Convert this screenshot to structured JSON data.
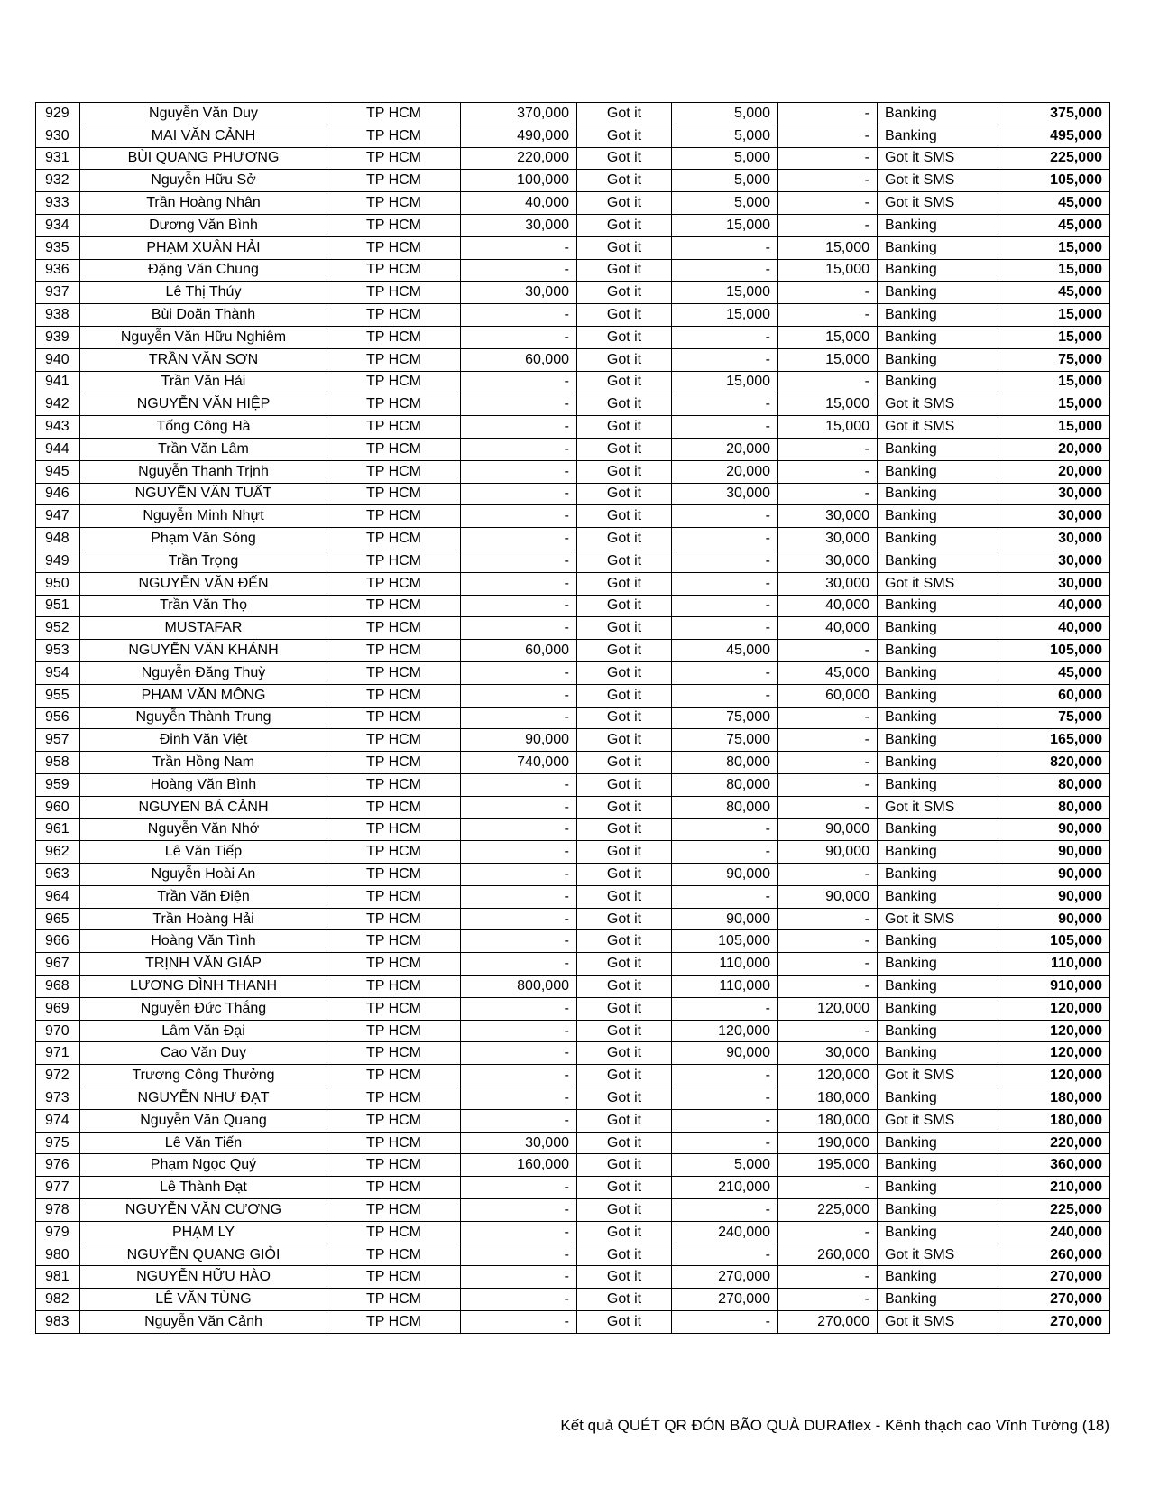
{
  "table": {
    "rows": [
      [
        "929",
        "Nguyễn Văn Duy",
        "TP HCM",
        "370,000",
        "Got it",
        "5,000",
        "-",
        "Banking",
        "375,000"
      ],
      [
        "930",
        "MAI VĂN CẢNH",
        "TP HCM",
        "490,000",
        "Got it",
        "5,000",
        "-",
        "Banking",
        "495,000"
      ],
      [
        "931",
        "BÙI QUANG PHƯƠNG",
        "TP HCM",
        "220,000",
        "Got it",
        "5,000",
        "-",
        "Got it SMS",
        "225,000"
      ],
      [
        "932",
        "Nguyễn Hữu Sở",
        "TP HCM",
        "100,000",
        "Got it",
        "5,000",
        "-",
        "Got it SMS",
        "105,000"
      ],
      [
        "933",
        "Trần Hoàng Nhân",
        "TP HCM",
        "40,000",
        "Got it",
        "5,000",
        "-",
        "Got it SMS",
        "45,000"
      ],
      [
        "934",
        "Dương Văn Bình",
        "TP HCM",
        "30,000",
        "Got it",
        "15,000",
        "-",
        "Banking",
        "45,000"
      ],
      [
        "935",
        "PHẠM XUÂN HẢI",
        "TP HCM",
        "-",
        "Got it",
        "-",
        "15,000",
        "Banking",
        "15,000"
      ],
      [
        "936",
        "Đặng Văn Chung",
        "TP HCM",
        "-",
        "Got it",
        "-",
        "15,000",
        "Banking",
        "15,000"
      ],
      [
        "937",
        "Lê Thị Thúy",
        "TP HCM",
        "30,000",
        "Got it",
        "15,000",
        "-",
        "Banking",
        "45,000"
      ],
      [
        "938",
        "Bùi Doãn Thành",
        "TP HCM",
        "-",
        "Got it",
        "15,000",
        "-",
        "Banking",
        "15,000"
      ],
      [
        "939",
        "Nguyễn Văn Hữu Nghiêm",
        "TP HCM",
        "-",
        "Got it",
        "-",
        "15,000",
        "Banking",
        "15,000"
      ],
      [
        "940",
        "TRẦN VĂN SƠN",
        "TP HCM",
        "60,000",
        "Got it",
        "-",
        "15,000",
        "Banking",
        "75,000"
      ],
      [
        "941",
        "Trần Văn Hải",
        "TP HCM",
        "-",
        "Got it",
        "15,000",
        "-",
        "Banking",
        "15,000"
      ],
      [
        "942",
        "NGUYỄN VĂN HIỆP",
        "TP HCM",
        "-",
        "Got it",
        "-",
        "15,000",
        "Got it SMS",
        "15,000"
      ],
      [
        "943",
        "Tống Công Hà",
        "TP HCM",
        "-",
        "Got it",
        "-",
        "15,000",
        "Got it SMS",
        "15,000"
      ],
      [
        "944",
        "Trần Văn Lâm",
        "TP HCM",
        "-",
        "Got it",
        "20,000",
        "-",
        "Banking",
        "20,000"
      ],
      [
        "945",
        "Nguyễn Thanh Trịnh",
        "TP HCM",
        "-",
        "Got it",
        "20,000",
        "-",
        "Banking",
        "20,000"
      ],
      [
        "946",
        "NGUYỄN VĂN TUẤT",
        "TP HCM",
        "-",
        "Got it",
        "30,000",
        "-",
        "Banking",
        "30,000"
      ],
      [
        "947",
        "Nguyễn Minh Nhựt",
        "TP HCM",
        "-",
        "Got it",
        "-",
        "30,000",
        "Banking",
        "30,000"
      ],
      [
        "948",
        "Phạm Văn Sóng",
        "TP HCM",
        "-",
        "Got it",
        "-",
        "30,000",
        "Banking",
        "30,000"
      ],
      [
        "949",
        "Trần Trọng",
        "TP HCM",
        "-",
        "Got it",
        "-",
        "30,000",
        "Banking",
        "30,000"
      ],
      [
        "950",
        "NGUYỄN VĂN ĐẾN",
        "TP HCM",
        "-",
        "Got it",
        "-",
        "30,000",
        "Got it SMS",
        "30,000"
      ],
      [
        "951",
        "Trần Văn Thọ",
        "TP HCM",
        "-",
        "Got it",
        "-",
        "40,000",
        "Banking",
        "40,000"
      ],
      [
        "952",
        "MUSTAFAR",
        "TP HCM",
        "-",
        "Got it",
        "-",
        "40,000",
        "Banking",
        "40,000"
      ],
      [
        "953",
        "NGUYỄN VĂN KHÁNH",
        "TP HCM",
        "60,000",
        "Got it",
        "45,000",
        "-",
        "Banking",
        "105,000"
      ],
      [
        "954",
        "Nguyễn Đăng Thuỳ",
        "TP HCM",
        "-",
        "Got it",
        "-",
        "45,000",
        "Banking",
        "45,000"
      ],
      [
        "955",
        "PHAM VĂN MÔNG",
        "TP HCM",
        "-",
        "Got it",
        "-",
        "60,000",
        "Banking",
        "60,000"
      ],
      [
        "956",
        "Nguyễn Thành Trung",
        "TP HCM",
        "-",
        "Got it",
        "75,000",
        "-",
        "Banking",
        "75,000"
      ],
      [
        "957",
        "Đinh Văn Việt",
        "TP HCM",
        "90,000",
        "Got it",
        "75,000",
        "-",
        "Banking",
        "165,000"
      ],
      [
        "958",
        "Trần Hồng Nam",
        "TP HCM",
        "740,000",
        "Got it",
        "80,000",
        "-",
        "Banking",
        "820,000"
      ],
      [
        "959",
        "Hoàng Văn Bình",
        "TP HCM",
        "-",
        "Got it",
        "80,000",
        "-",
        "Banking",
        "80,000"
      ],
      [
        "960",
        "NGUYEN BÁ CẢNH",
        "TP HCM",
        "-",
        "Got it",
        "80,000",
        "-",
        "Got it SMS",
        "80,000"
      ],
      [
        "961",
        "Nguyễn Văn Nhớ",
        "TP HCM",
        "-",
        "Got it",
        "-",
        "90,000",
        "Banking",
        "90,000"
      ],
      [
        "962",
        "Lê Văn Tiếp",
        "TP HCM",
        "-",
        "Got it",
        "-",
        "90,000",
        "Banking",
        "90,000"
      ],
      [
        "963",
        "Nguyễn Hoài An",
        "TP HCM",
        "-",
        "Got it",
        "90,000",
        "-",
        "Banking",
        "90,000"
      ],
      [
        "964",
        "Trần Văn Điện",
        "TP HCM",
        "-",
        "Got it",
        "-",
        "90,000",
        "Banking",
        "90,000"
      ],
      [
        "965",
        "Trần  Hoàng Hải",
        "TP HCM",
        "-",
        "Got it",
        "90,000",
        "-",
        "Got it SMS",
        "90,000"
      ],
      [
        "966",
        "Hoàng Văn Tình",
        "TP HCM",
        "-",
        "Got it",
        "105,000",
        "-",
        "Banking",
        "105,000"
      ],
      [
        "967",
        "TRỊNH VĂN GIÁP",
        "TP HCM",
        "-",
        "Got it",
        "110,000",
        "-",
        "Banking",
        "110,000"
      ],
      [
        "968",
        "LƯƠNG ĐÌNH THANH",
        "TP HCM",
        "800,000",
        "Got it",
        "110,000",
        "-",
        "Banking",
        "910,000"
      ],
      [
        "969",
        "Nguyễn Đức Thắng",
        "TP HCM",
        "-",
        "Got it",
        "-",
        "120,000",
        "Banking",
        "120,000"
      ],
      [
        "970",
        "Lâm Văn Đại",
        "TP HCM",
        "-",
        "Got it",
        "120,000",
        "-",
        "Banking",
        "120,000"
      ],
      [
        "971",
        "Cao Văn Duy",
        "TP HCM",
        "-",
        "Got it",
        "90,000",
        "30,000",
        "Banking",
        "120,000"
      ],
      [
        "972",
        "Trương Công Thưởng",
        "TP HCM",
        "-",
        "Got it",
        "-",
        "120,000",
        "Got it SMS",
        "120,000"
      ],
      [
        "973",
        "NGUYỄN NHƯ ĐẠT",
        "TP HCM",
        "-",
        "Got it",
        "-",
        "180,000",
        "Banking",
        "180,000"
      ],
      [
        "974",
        "Nguyễn Văn Quang",
        "TP HCM",
        "-",
        "Got it",
        "-",
        "180,000",
        "Got it SMS",
        "180,000"
      ],
      [
        "975",
        "Lê Văn Tiến",
        "TP HCM",
        "30,000",
        "Got it",
        "-",
        "190,000",
        "Banking",
        "220,000"
      ],
      [
        "976",
        "Phạm Ngọc Quý",
        "TP HCM",
        "160,000",
        "Got it",
        "5,000",
        "195,000",
        "Banking",
        "360,000"
      ],
      [
        "977",
        "Lê Thành Đạt",
        "TP HCM",
        "-",
        "Got it",
        "210,000",
        "-",
        "Banking",
        "210,000"
      ],
      [
        "978",
        "NGUYỄN VĂN CƯƠNG",
        "TP HCM",
        "-",
        "Got it",
        "-",
        "225,000",
        "Banking",
        "225,000"
      ],
      [
        "979",
        "PHẠM LY",
        "TP HCM",
        "-",
        "Got it",
        "240,000",
        "-",
        "Banking",
        "240,000"
      ],
      [
        "980",
        "NGUYỄN QUANG GIỎI",
        "TP HCM",
        "-",
        "Got it",
        "-",
        "260,000",
        "Got it SMS",
        "260,000"
      ],
      [
        "981",
        "NGUYỄN HỮU HÀO",
        "TP HCM",
        "-",
        "Got it",
        "270,000",
        "-",
        "Banking",
        "270,000"
      ],
      [
        "982",
        "LÊ VĂN TÙNG",
        "TP HCM",
        "-",
        "Got it",
        "270,000",
        "-",
        "Banking",
        "270,000"
      ],
      [
        "983",
        "Nguyễn Văn Cảnh",
        "TP HCM",
        "-",
        "Got it",
        "-",
        "270,000",
        "Got it SMS",
        "270,000"
      ]
    ]
  },
  "footer": {
    "text": "Kết quả QUÉT QR ĐÓN BÃO QUÀ DURAflex - Kênh thạch cao Vĩnh Tường (18)"
  }
}
